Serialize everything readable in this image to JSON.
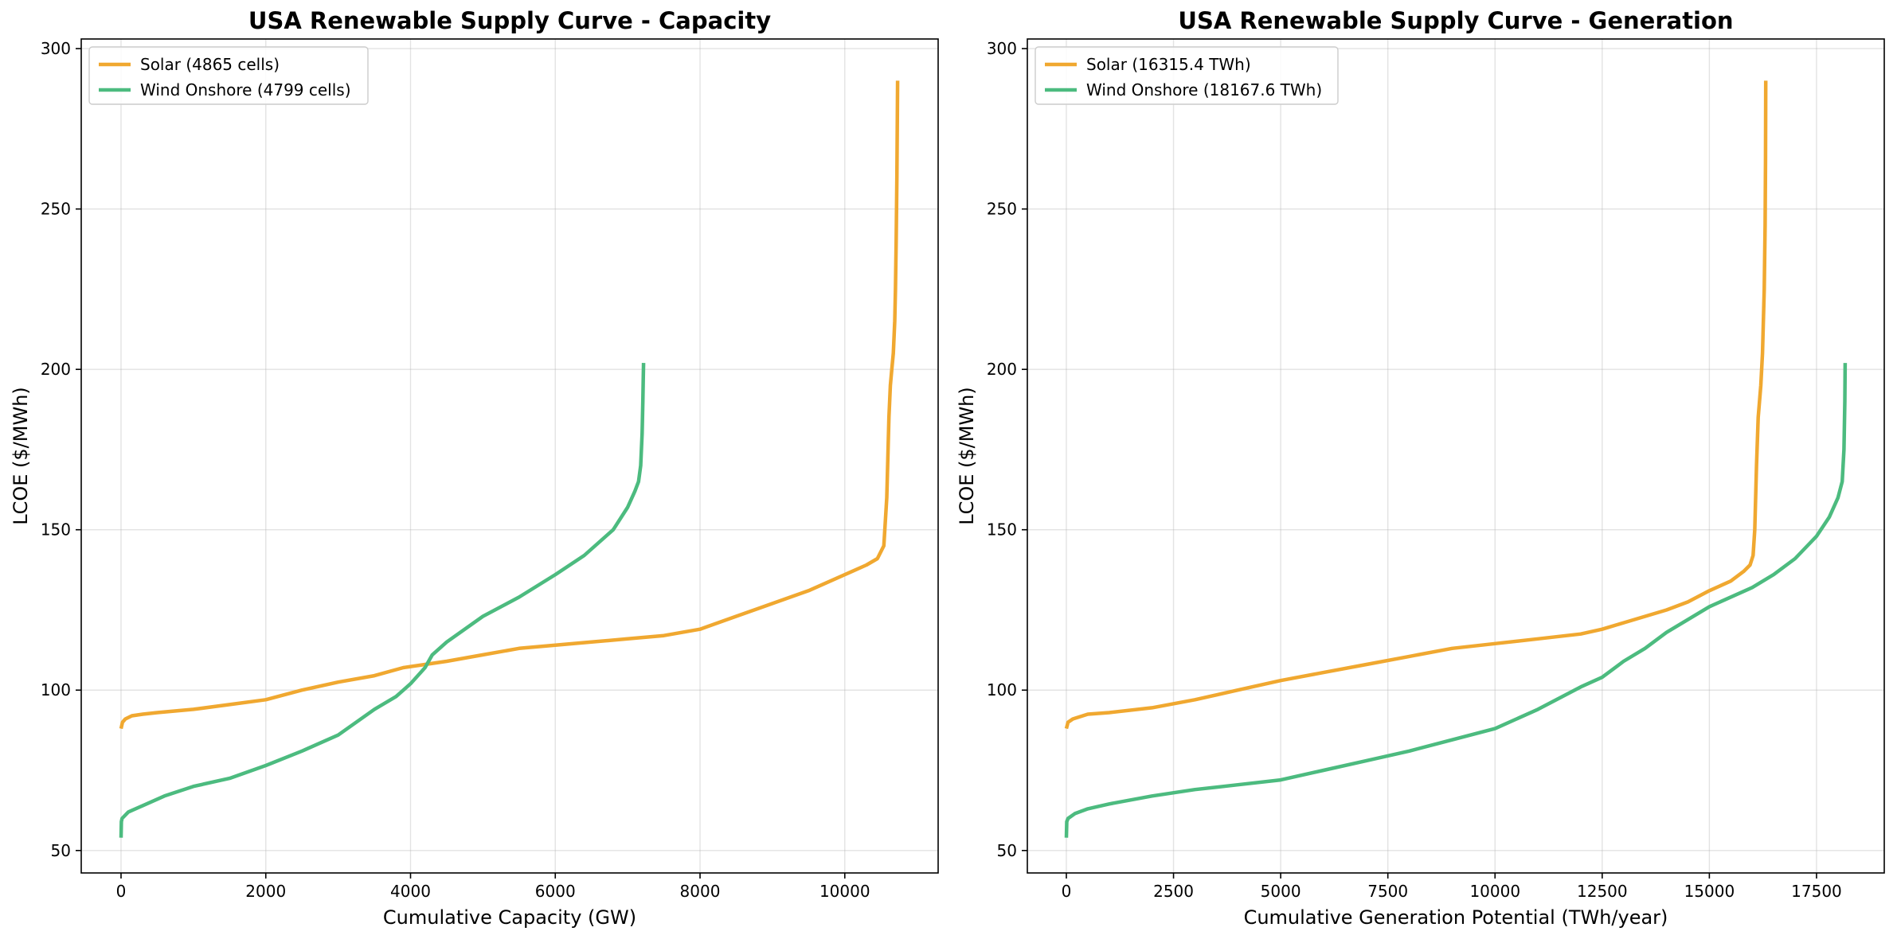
{
  "chart_data": [
    {
      "type": "line",
      "title": "USA Renewable Supply Curve - Capacity",
      "xlabel": "Cumulative Capacity (GW)",
      "ylabel": "LCOE ($/MWh)",
      "xlim": [
        -550,
        11290
      ],
      "ylim": [
        43,
        303
      ],
      "xticks": [
        0,
        2000,
        4000,
        6000,
        8000,
        10000
      ],
      "yticks": [
        50,
        100,
        150,
        200,
        250,
        300
      ],
      "grid": true,
      "legend_position": "top-left",
      "series": [
        {
          "name": "Solar (4865 cells)",
          "color": "#f0a830",
          "x": [
            0,
            20,
            60,
            150,
            300,
            500,
            1000,
            1500,
            2000,
            2500,
            3000,
            3500,
            3900,
            4200,
            4500,
            5000,
            5500,
            6000,
            6500,
            7000,
            7500,
            8000,
            8500,
            9000,
            9500,
            9800,
            10100,
            10300,
            10450,
            10540,
            10580,
            10610,
            10630,
            10650,
            10670,
            10690,
            10700,
            10710,
            10720,
            10730
          ],
          "y": [
            88,
            90,
            91,
            92,
            92.5,
            93,
            94,
            95.5,
            97,
            100,
            102.5,
            104.5,
            107,
            108,
            109,
            111,
            113,
            114,
            115,
            116,
            117,
            119,
            123,
            127,
            131,
            134,
            137,
            139,
            141,
            145,
            160,
            185,
            195,
            200,
            205,
            215,
            225,
            240,
            260,
            290
          ]
        },
        {
          "name": "Wind Onshore (4799 cells)",
          "color": "#4cbb7f",
          "x": [
            0,
            5,
            15,
            100,
            300,
            600,
            1000,
            1500,
            2000,
            2500,
            3000,
            3500,
            3800,
            4000,
            4200,
            4300,
            4500,
            5000,
            5500,
            6000,
            6400,
            6800,
            7000,
            7100,
            7150,
            7180,
            7200,
            7210,
            7215,
            7220
          ],
          "y": [
            54,
            59,
            60,
            62,
            64,
            67,
            70,
            72.5,
            76.5,
            81,
            86,
            94,
            98,
            102,
            107,
            111,
            115,
            123,
            129,
            136,
            142,
            150,
            157,
            162,
            165,
            170,
            180,
            190,
            197,
            202
          ]
        }
      ]
    },
    {
      "type": "line",
      "title": "USA Renewable Supply Curve - Generation",
      "xlabel": "Cumulative Generation Potential (TWh/year)",
      "ylabel": "LCOE ($/MWh)",
      "xlim": [
        -910,
        19080
      ],
      "ylim": [
        43,
        303
      ],
      "xticks": [
        0,
        2500,
        5000,
        7500,
        10000,
        12500,
        15000,
        17500
      ],
      "yticks": [
        50,
        100,
        150,
        200,
        250,
        300
      ],
      "grid": true,
      "legend_position": "top-left",
      "series": [
        {
          "name": "Solar (16315.4 TWh)",
          "color": "#f0a830",
          "x": [
            0,
            40,
            150,
            500,
            1000,
            2000,
            3000,
            4000,
            5000,
            6000,
            7000,
            8000,
            9000,
            10000,
            11000,
            12000,
            12500,
            13000,
            14000,
            14500,
            15000,
            15500,
            15800,
            15950,
            16020,
            16060,
            16100,
            16140,
            16200,
            16240,
            16280,
            16300,
            16310,
            16315
          ],
          "y": [
            88,
            90,
            91,
            92.5,
            93,
            94.5,
            97,
            100,
            103,
            105.5,
            108,
            110.5,
            113,
            114.5,
            116,
            117.5,
            119,
            121,
            125,
            127.5,
            131,
            134,
            137,
            139,
            142,
            150,
            170,
            185,
            195,
            205,
            225,
            245,
            265,
            290
          ]
        },
        {
          "name": "Wind Onshore (18167.6 TWh)",
          "color": "#4cbb7f",
          "x": [
            0,
            10,
            40,
            200,
            500,
            1000,
            2000,
            3000,
            4000,
            5000,
            6000,
            7000,
            8000,
            9000,
            10000,
            11000,
            12000,
            12500,
            13000,
            13500,
            14000,
            15000,
            16000,
            16500,
            17000,
            17500,
            17800,
            18000,
            18100,
            18140,
            18160,
            18168
          ],
          "y": [
            54,
            59,
            60,
            61.5,
            63,
            64.5,
            67,
            69,
            70.5,
            72,
            75,
            78,
            81,
            84.5,
            88,
            94,
            101,
            104,
            109,
            113,
            118,
            126,
            132,
            136,
            141,
            148,
            154,
            160,
            165,
            175,
            190,
            202
          ]
        }
      ]
    }
  ]
}
